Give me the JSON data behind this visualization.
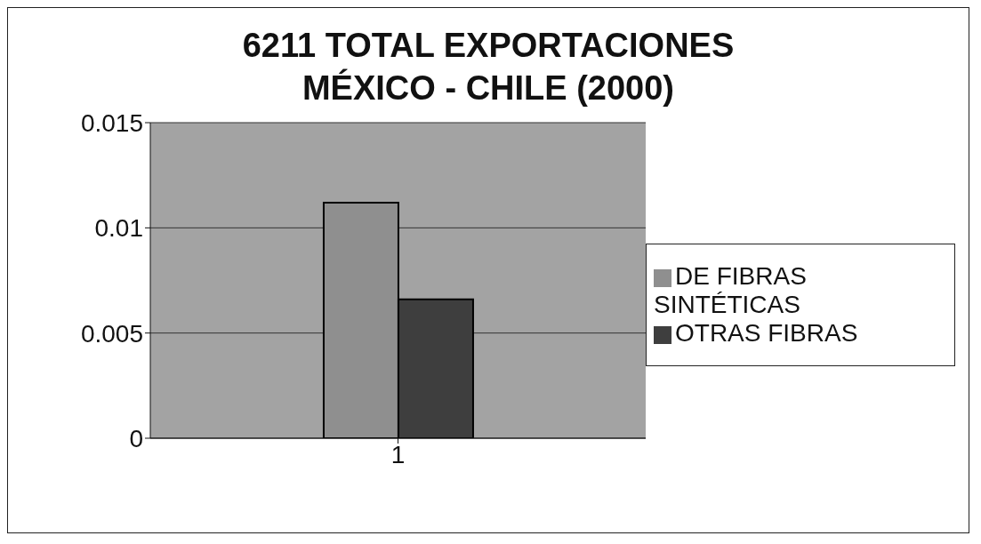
{
  "chart_data": {
    "type": "bar",
    "title": "6211 TOTAL EXPORTACIONES\nMÉXICO - CHILE (2000)",
    "categories": [
      "1"
    ],
    "series": [
      {
        "name": "DE FIBRAS SINTÉTICAS",
        "color": "#8f8f8f",
        "values": [
          0.0112
        ]
      },
      {
        "name": "OTRAS FIBRAS",
        "color": "#3e3e3e",
        "values": [
          0.0066
        ]
      }
    ],
    "ylim": [
      0,
      0.015
    ],
    "yticks": [
      0,
      0.005,
      0.01,
      0.015
    ],
    "grid": "y",
    "legend": "right"
  }
}
